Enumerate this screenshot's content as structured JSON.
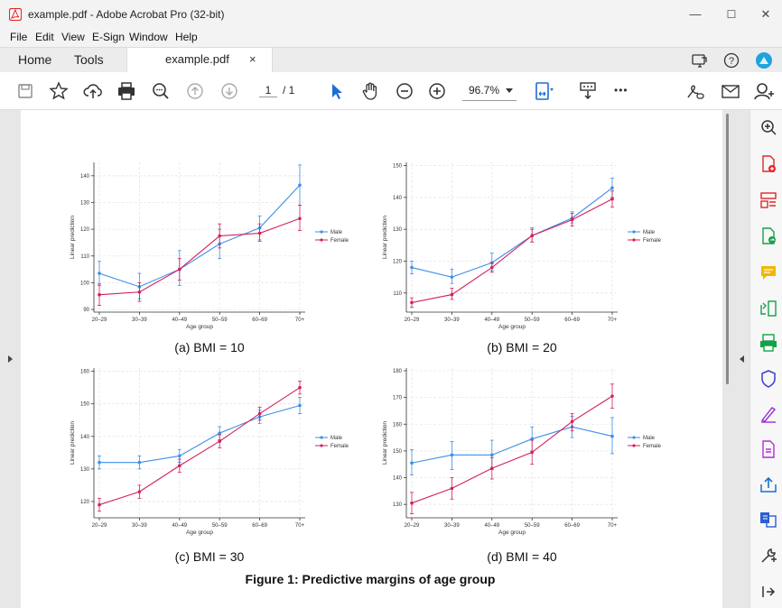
{
  "window": {
    "title": "example.pdf - Adobe Acrobat Pro (32-bit)",
    "minimize": "—",
    "maximize": "☐",
    "close": "✕"
  },
  "menu": [
    "File",
    "Edit",
    "View",
    "E-Sign",
    "Window",
    "Help"
  ],
  "tabs": {
    "home": "Home",
    "tools": "Tools",
    "doc": "example.pdf",
    "doc_close": "×"
  },
  "toolbar": {
    "page_current": "1",
    "page_total": "/ 1",
    "zoom": "96.7%",
    "more": "•••"
  },
  "colors": {
    "male": "#3d8ee8",
    "female": "#d3205c",
    "acrobat_red": "#e5252a"
  },
  "document": {
    "figure_caption": "Figure 1: Predictive margins of age group",
    "legend": {
      "male": "Male",
      "female": "Female"
    }
  },
  "chart_data": [
    {
      "type": "line",
      "caption": "(a) BMI = 10",
      "xlabel": "Age group",
      "ylabel": "Linear prediction",
      "categories": [
        "20–29",
        "30–39",
        "40–49",
        "50–59",
        "60–69",
        "70+"
      ],
      "yticks": [
        90,
        100,
        110,
        120,
        130,
        140
      ],
      "ylim": [
        89,
        145
      ],
      "series": [
        {
          "name": "Male",
          "values": [
            103.5,
            98.5,
            105,
            114.5,
            120.5,
            136.5
          ],
          "ci": [
            [
              99,
              108
            ],
            [
              94,
              103.5
            ],
            [
              99,
              112
            ],
            [
              109,
              120
            ],
            [
              116,
              125
            ],
            [
              129,
              144
            ]
          ]
        },
        {
          "name": "Female",
          "values": [
            95.5,
            96.5,
            105,
            117.5,
            118.5,
            124
          ],
          "ci": [
            [
              91.5,
              99.5
            ],
            [
              93,
              100
            ],
            [
              101,
              109
            ],
            [
              113,
              122
            ],
            [
              115.5,
              122
            ],
            [
              119.5,
              129
            ]
          ]
        }
      ],
      "legend": "right"
    },
    {
      "type": "line",
      "caption": "(b) BMI = 20",
      "xlabel": "Age group",
      "ylabel": "Linear prediction",
      "categories": [
        "20–29",
        "30–39",
        "40–49",
        "50–59",
        "60–69",
        "70+"
      ],
      "yticks": [
        110,
        120,
        130,
        140,
        150
      ],
      "ylim": [
        104,
        151
      ],
      "series": [
        {
          "name": "Male",
          "values": [
            118,
            115,
            119.5,
            128,
            133.5,
            143
          ],
          "ci": [
            [
              116,
              120
            ],
            [
              113,
              117.5
            ],
            [
              117,
              122.5
            ],
            [
              126,
              130.5
            ],
            [
              132,
              135.5
            ],
            [
              140,
              146
            ]
          ]
        },
        {
          "name": "Female",
          "values": [
            107,
            109.5,
            118,
            128,
            133,
            139.5
          ],
          "ci": [
            [
              105.5,
              108.5
            ],
            [
              108,
              111.5
            ],
            [
              116.5,
              119.5
            ],
            [
              126,
              130
            ],
            [
              131,
              135
            ],
            [
              137,
              142
            ]
          ]
        }
      ],
      "legend": "right"
    },
    {
      "type": "line",
      "caption": "(c) BMI = 30",
      "xlabel": "Age group",
      "ylabel": "Linear prediction",
      "categories": [
        "20–29",
        "30–39",
        "40–49",
        "50–59",
        "60–69",
        "70+"
      ],
      "yticks": [
        120,
        130,
        140,
        150,
        160
      ],
      "ylim": [
        115,
        161
      ],
      "series": [
        {
          "name": "Male",
          "values": [
            132,
            132,
            134,
            141,
            146,
            149.5
          ],
          "ci": [
            [
              130,
              134
            ],
            [
              130,
              134
            ],
            [
              132,
              136
            ],
            [
              139,
              143
            ],
            [
              144,
              148
            ],
            [
              147,
              152
            ]
          ]
        },
        {
          "name": "Female",
          "values": [
            119,
            123,
            131,
            138.5,
            147,
            155
          ],
          "ci": [
            [
              117,
              121
            ],
            [
              121,
              125
            ],
            [
              129,
              133
            ],
            [
              136.5,
              140.5
            ],
            [
              145,
              149
            ],
            [
              153,
              157
            ]
          ]
        }
      ],
      "legend": "right"
    },
    {
      "type": "line",
      "caption": "(d) BMI = 40",
      "xlabel": "Age group",
      "ylabel": "Linear prediction",
      "categories": [
        "20–29",
        "30–39",
        "40–49",
        "50–59",
        "60–69",
        "70+"
      ],
      "yticks": [
        130,
        140,
        150,
        160,
        170,
        180
      ],
      "ylim": [
        125,
        181
      ],
      "series": [
        {
          "name": "Male",
          "values": [
            145.5,
            148.5,
            148.5,
            154.5,
            159,
            155.5
          ],
          "ci": [
            [
              141,
              150.5
            ],
            [
              143,
              153.5
            ],
            [
              143,
              154
            ],
            [
              150,
              159
            ],
            [
              155,
              163
            ],
            [
              149,
              162.5
            ]
          ]
        },
        {
          "name": "Female",
          "values": [
            130.5,
            136,
            143.5,
            149.5,
            161,
            170.5
          ],
          "ci": [
            [
              126.5,
              134.5
            ],
            [
              132,
              140
            ],
            [
              139.5,
              147.5
            ],
            [
              145,
              154
            ],
            [
              157.5,
              164
            ],
            [
              166,
              175
            ]
          ]
        }
      ],
      "legend": "right"
    }
  ]
}
